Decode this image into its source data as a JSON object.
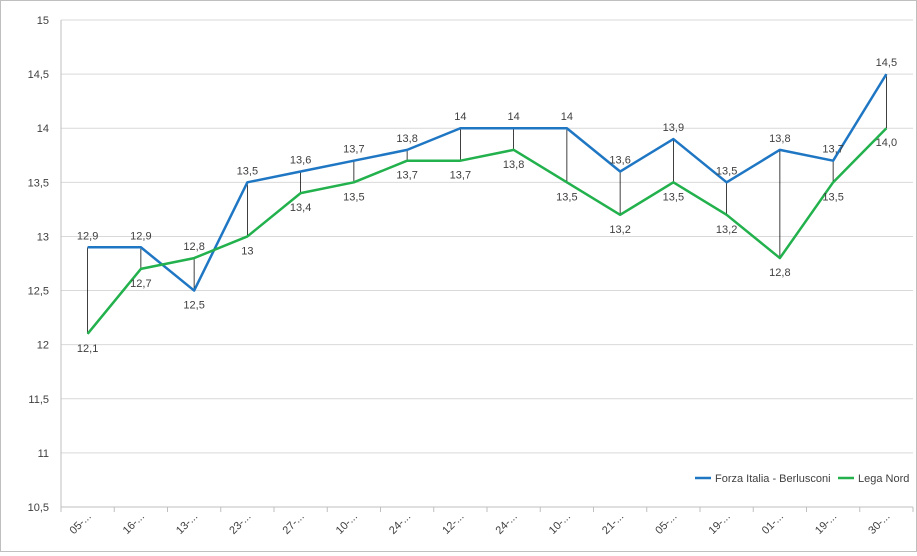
{
  "chart_data": {
    "type": "line",
    "title": "",
    "xlabel": "",
    "ylabel": "",
    "ylim": [
      10.5,
      15
    ],
    "y_ticks": [
      "10,5",
      "11",
      "11,5",
      "12",
      "12,5",
      "13",
      "13,5",
      "14",
      "14,5",
      "15"
    ],
    "categories": [
      "05-...",
      "16-...",
      "13-...",
      "23-...",
      "27-...",
      "10-...",
      "24-...",
      "12-...",
      "24-...",
      "10-...",
      "21-...",
      "05-...",
      "19-...",
      "01-...",
      "19-...",
      "30-..."
    ],
    "grid": "horizontal",
    "legend_position": "bottom-right",
    "high_low_lines": true,
    "series": [
      {
        "name": "Forza Italia - Berlusconi",
        "color": "#1f77c4",
        "values": [
          12.9,
          12.9,
          12.5,
          13.5,
          13.6,
          13.7,
          13.8,
          14,
          14,
          14,
          13.6,
          13.9,
          13.5,
          13.8,
          13.7,
          14.5
        ],
        "labels": [
          "12,9",
          "12,9",
          "12,5",
          "13,5",
          "13,6",
          "13,7",
          "13,8",
          "14",
          "14",
          "14",
          "13,6",
          "13,9",
          "13,5",
          "13,8",
          "13,7",
          "14,5"
        ]
      },
      {
        "name": "Lega Nord",
        "color": "#22b14c",
        "values": [
          12.1,
          12.7,
          12.8,
          13,
          13.4,
          13.5,
          13.7,
          13.7,
          13.8,
          13.5,
          13.2,
          13.5,
          13.2,
          12.8,
          13.5,
          14.0
        ],
        "labels": [
          "12,1",
          "12,7",
          "12,8",
          "13",
          "13,4",
          "13,5",
          "13,7",
          "13,7",
          "13,8",
          "13,5",
          "13,2",
          "13,5",
          "13,2",
          "12,8",
          "13,5",
          "14,0"
        ]
      }
    ]
  }
}
